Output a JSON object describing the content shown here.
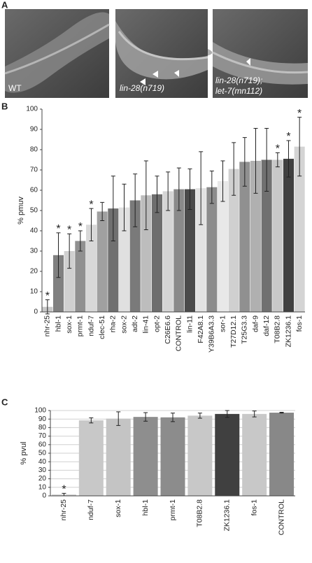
{
  "panels": [
    "A",
    "B",
    "C"
  ],
  "images": [
    {
      "label": "WT"
    },
    {
      "label": "lin-28(n719)"
    },
    {
      "label": [
        "lin-28(n719);",
        "let-7(mn112)"
      ]
    }
  ],
  "chart_data": [
    {
      "type": "bar",
      "y_label": "% pmuv",
      "categories": [
        "nhr-25",
        "hbl-1",
        "sox-1",
        "prmt-1",
        "nduf-7",
        "clec-51",
        "rha-2",
        "sox-2",
        "adt-2",
        "lin-41",
        "opt-2",
        "C26E6.6",
        "CONTROL",
        "lin-11",
        "F42A8.1",
        "Y39B6A3.3",
        "sor-1",
        "T27D12.1",
        "T25G3.3",
        "daf-9",
        "daf-12",
        "T08B2.8",
        "ZK1236.1",
        "fos-1"
      ],
      "values": [
        2.5,
        28,
        30,
        35,
        43,
        49.5,
        51,
        51.5,
        55,
        57.5,
        58,
        59.5,
        60.5,
        60.5,
        61,
        61.5,
        64.5,
        70.5,
        74,
        74.5,
        75,
        75,
        75.5,
        81.5
      ],
      "errors": [
        3.5,
        11,
        8.5,
        5,
        8,
        4.5,
        16,
        11.5,
        13,
        17,
        9,
        9.5,
        10.5,
        10,
        18,
        8,
        10,
        13,
        12,
        16,
        15.5,
        3.5,
        9,
        14.5
      ],
      "markers": [
        "*",
        "*",
        "*",
        "*",
        "*",
        null,
        null,
        null,
        null,
        null,
        null,
        null,
        null,
        null,
        null,
        null,
        null,
        null,
        null,
        null,
        null,
        "*",
        "*",
        "*"
      ],
      "colors": [
        "#c8c8c8",
        "#808080",
        "#d0d0d0",
        "#909090",
        "#d8d8d8",
        "#a0a0a0",
        "#707070",
        "#e0e0e0",
        "#7a7a7a",
        "#bdbdbd",
        "#6e6e6e",
        "#d5d5d5",
        "#8a8a8a",
        "#4a4a4a",
        "#e2e2e2",
        "#8c8c8c",
        "#e8e8e8",
        "#d0d0d0",
        "#909090",
        "#b0b0b0",
        "#707070",
        "#c8c8c8",
        "#404040",
        "#d4d4d4"
      ],
      "ylim": [
        0,
        100
      ],
      "yticks": [
        0,
        10,
        20,
        30,
        40,
        50,
        60,
        70,
        80,
        90,
        100
      ],
      "grid": false
    },
    {
      "type": "bar",
      "y_label": "% pvul",
      "categories": [
        "nhr-25",
        "nduf-7",
        "sox-1",
        "hbl-1",
        "prmt-1",
        "T08B2.8",
        "ZK1236.1",
        "fos-1",
        "CONTROL"
      ],
      "values": [
        1.5,
        88.5,
        90.5,
        92.5,
        92,
        94,
        96,
        96,
        97.5
      ],
      "errors": [
        1.5,
        3,
        8,
        5,
        5,
        3,
        4,
        3.5,
        0.5
      ],
      "markers": [
        "*",
        null,
        null,
        null,
        null,
        null,
        null,
        null,
        null
      ],
      "colors": [
        "#c8c8c8",
        "#c8c8c8",
        "#c4c4c4",
        "#8e8e8e",
        "#8c8c8c",
        "#c8c8c8",
        "#404040",
        "#c8c8c8",
        "#888888"
      ],
      "ylim": [
        0,
        100
      ],
      "yticks": [
        0,
        10,
        20,
        30,
        40,
        50,
        60,
        70,
        80,
        90,
        100
      ],
      "grid": true
    }
  ]
}
